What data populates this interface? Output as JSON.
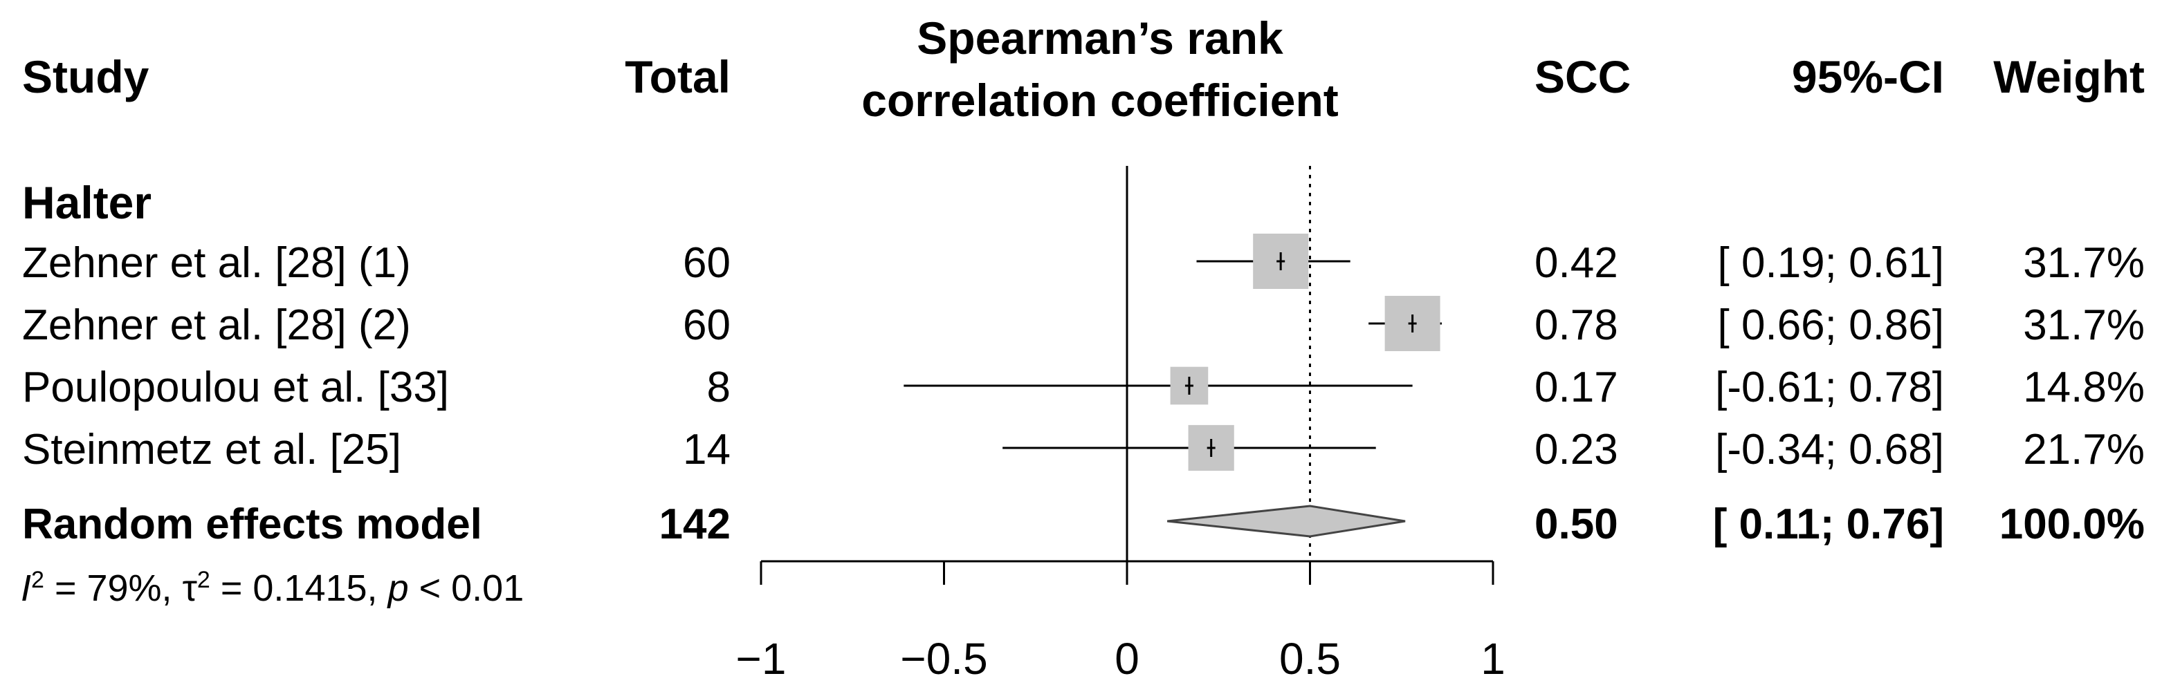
{
  "chart_data": {
    "type": "forest",
    "title_lines": [
      "Spearman’s rank",
      "correlation coefficient"
    ],
    "columns": {
      "study": "Study",
      "total": "Total",
      "scc": "SCC",
      "ci": "95%-CI",
      "weight": "Weight"
    },
    "subgroup": "Halter",
    "studies": [
      {
        "name": "Zehner et al. [28] (1)",
        "total": "60",
        "scc": "0.42",
        "ci": "[ 0.19; 0.61]",
        "weight": "31.7%",
        "est": 0.42,
        "lo": 0.19,
        "hi": 0.61,
        "w": 31.7
      },
      {
        "name": "Zehner et al. [28] (2)",
        "total": "60",
        "scc": "0.78",
        "ci": "[ 0.66; 0.86]",
        "weight": "31.7%",
        "est": 0.78,
        "lo": 0.66,
        "hi": 0.86,
        "w": 31.7
      },
      {
        "name": "Poulopoulou et al. [33]",
        "total": "8",
        "scc": "0.17",
        "ci": "[-0.61; 0.78]",
        "weight": "14.8%",
        "est": 0.17,
        "lo": -0.61,
        "hi": 0.78,
        "w": 14.8
      },
      {
        "name": "Steinmetz et al. [25]",
        "total": "14",
        "scc": "0.23",
        "ci": "[-0.34; 0.68]",
        "weight": "21.7%",
        "est": 0.23,
        "lo": -0.34,
        "hi": 0.68,
        "w": 21.7
      }
    ],
    "pooled": {
      "name": "Random effects model",
      "total": "142",
      "scc": "0.50",
      "ci": "[ 0.11; 0.76]",
      "weight": "100.0%",
      "est": 0.5,
      "lo": 0.11,
      "hi": 0.76
    },
    "heterogeneity": {
      "i2_sym": "I",
      "i2_sup": "2",
      "i2_val": " = 79%, ",
      "tau_sym": "τ",
      "tau_sup": "2",
      "tau_val": " = 0.1415, ",
      "p_sym": "p",
      "p_val": " < 0.01"
    },
    "null_line": 0,
    "reference_line": 0.5,
    "xlim": [
      -1,
      1
    ],
    "ticks": [
      -1,
      -0.5,
      0,
      0.5,
      1
    ],
    "tick_labels": [
      "−1",
      "−0.5",
      "0",
      "0.5",
      "1"
    ]
  }
}
